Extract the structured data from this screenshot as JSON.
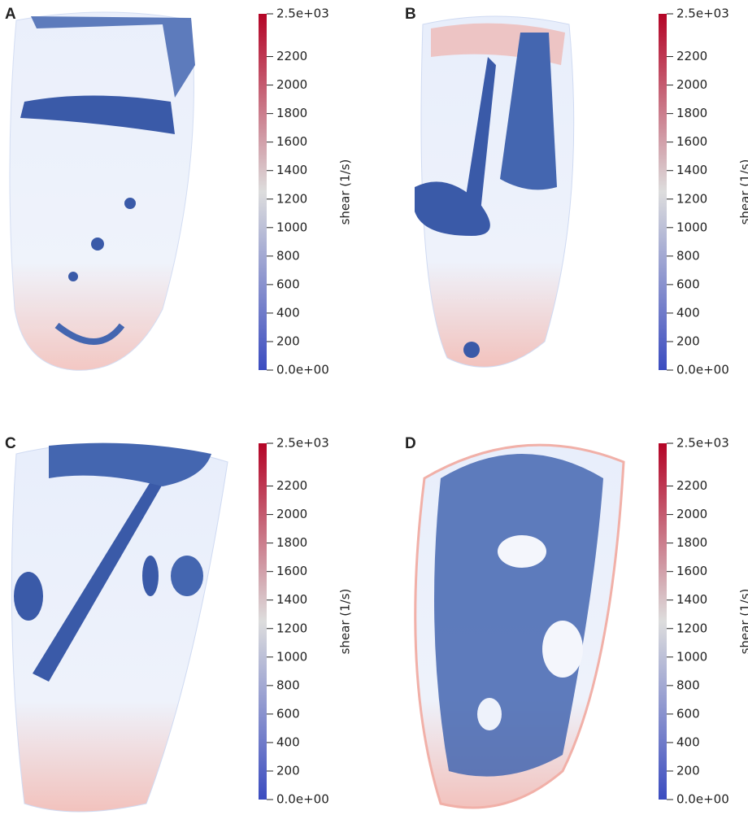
{
  "chart_data": [
    {
      "type": "colorbar",
      "panel": "A",
      "label": "shear (1/s)",
      "ylim": [
        0,
        2500
      ],
      "yticks": [
        {
          "value": 0,
          "label": "0.0e+00"
        },
        200,
        400,
        600,
        800,
        1000,
        1200,
        1400,
        1600,
        1800,
        2000,
        2200,
        {
          "value": 2500,
          "label": "2.5e+03"
        }
      ],
      "colors": [
        "#3b4cc0",
        "#dddddd",
        "#b40426"
      ]
    },
    {
      "type": "colorbar",
      "panel": "B",
      "label": "shear (1/s)",
      "ylim": [
        0,
        2500
      ],
      "yticks": [
        {
          "value": 0,
          "label": "0.0e+00"
        },
        200,
        400,
        600,
        800,
        1000,
        1200,
        1400,
        1600,
        1800,
        2000,
        2200,
        {
          "value": 2500,
          "label": "2.5e+03"
        }
      ],
      "colors": [
        "#3b4cc0",
        "#dddddd",
        "#b40426"
      ]
    },
    {
      "type": "colorbar",
      "panel": "C",
      "label": "shear (1/s)",
      "ylim": [
        0,
        2500
      ],
      "yticks": [
        {
          "value": 0,
          "label": "0.0e+00"
        },
        200,
        400,
        600,
        800,
        1000,
        1200,
        1400,
        1600,
        1800,
        2000,
        2200,
        {
          "value": 2500,
          "label": "2.5e+03"
        }
      ],
      "colors": [
        "#3b4cc0",
        "#dddddd",
        "#b40426"
      ]
    },
    {
      "type": "colorbar",
      "panel": "D",
      "label": "shear (1/s)",
      "ylim": [
        0,
        2500
      ],
      "yticks": [
        {
          "value": 0,
          "label": "0.0e+00"
        },
        200,
        400,
        600,
        800,
        1000,
        1200,
        1400,
        1600,
        1800,
        2000,
        2200,
        {
          "value": 2500,
          "label": "2.5e+03"
        }
      ],
      "colors": [
        "#3b4cc0",
        "#dddddd",
        "#b40426"
      ]
    }
  ]
}
